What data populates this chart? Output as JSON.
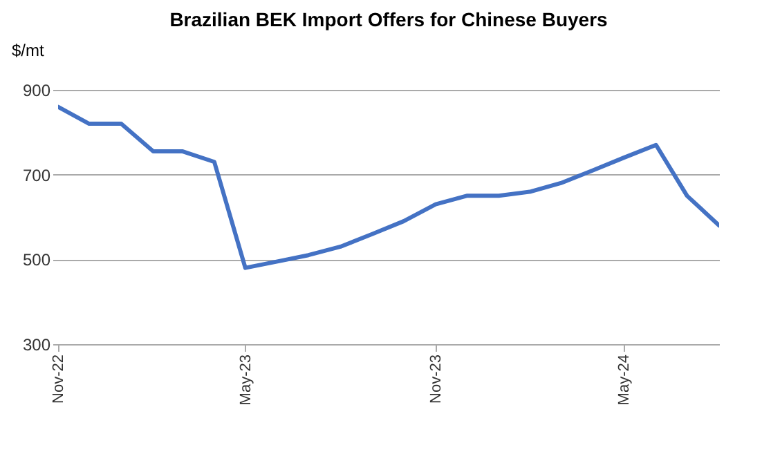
{
  "chart_data": {
    "type": "line",
    "title": "Brazilian BEK Import Offers for Chinese Buyers",
    "ylabel": "$/mt",
    "x": [
      "2022-11",
      "2022-12",
      "2023-01",
      "2023-02",
      "2023-03",
      "2023-04",
      "2023-05",
      "2023-06",
      "2023-07",
      "2023-08",
      "2023-09",
      "2023-10",
      "2023-11",
      "2023-12",
      "2024-01",
      "2024-02",
      "2024-03",
      "2024-04",
      "2024-05",
      "2024-06",
      "2024-07",
      "2024-08"
    ],
    "series": [
      {
        "color": "#4472c4",
        "values": [
          860,
          820,
          820,
          755,
          755,
          730,
          480,
          495,
          510,
          530,
          560,
          590,
          630,
          650,
          650,
          660,
          680,
          710,
          740,
          770,
          650,
          580
        ]
      }
    ],
    "xlim": [
      "2022-11",
      "2024-08"
    ],
    "xticks": [
      {
        "value": "2022-11",
        "label": "Nov-22"
      },
      {
        "value": "2023-05",
        "label": "May-23"
      },
      {
        "value": "2023-11",
        "label": "Nov-23"
      },
      {
        "value": "2024-05",
        "label": "May-24"
      }
    ],
    "ylim": [
      300,
      900
    ],
    "yticks": [
      300,
      500,
      700,
      900
    ],
    "grid": "y",
    "legend": false,
    "marker": "none",
    "line_style": "solid"
  }
}
